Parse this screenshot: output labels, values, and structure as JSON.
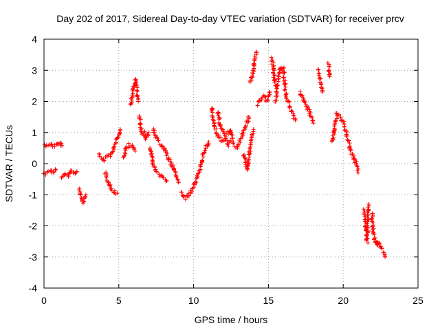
{
  "chart_data": {
    "type": "scatter",
    "title": "Day 202 of 2017, Sidereal Day-to-day VTEC variation (SDTVAR) for receiver prcv",
    "xlabel": "GPS time / hours",
    "ylabel": "SDTVAR / TECUs",
    "xlim": [
      0,
      25
    ],
    "ylim": [
      -4,
      4
    ],
    "grid": true,
    "marker": "plus",
    "color": "#ff0000",
    "xticks": [
      {
        "value": 0,
        "label": "0"
      },
      {
        "value": 5,
        "label": "5"
      },
      {
        "value": 10,
        "label": "10"
      },
      {
        "value": 15,
        "label": "15"
      },
      {
        "value": 20,
        "label": "20"
      },
      {
        "value": 25,
        "label": "25"
      }
    ],
    "yticks": [
      {
        "value": -4,
        "label": "-4"
      },
      {
        "value": -3,
        "label": "-3"
      },
      {
        "value": -2,
        "label": "-2"
      },
      {
        "value": -1,
        "label": "-1"
      },
      {
        "value": 0,
        "label": "0"
      },
      {
        "value": 1,
        "label": "1"
      },
      {
        "value": 2,
        "label": "2"
      },
      {
        "value": 3,
        "label": "3"
      },
      {
        "value": 4,
        "label": "4"
      }
    ],
    "series": [
      {
        "name": "SDTVAR",
        "segments": [
          [
            [
              0.0,
              0.6
            ],
            [
              0.3,
              0.62
            ],
            [
              0.6,
              0.57
            ],
            [
              0.9,
              0.63
            ]
          ],
          [
            [
              0.0,
              -0.33
            ],
            [
              0.2,
              -0.3
            ],
            [
              0.4,
              -0.22
            ],
            [
              0.6,
              -0.28
            ],
            [
              0.8,
              -0.2
            ]
          ],
          [
            [
              0.9,
              0.6
            ],
            [
              1.1,
              0.65
            ],
            [
              1.2,
              0.58
            ]
          ],
          [
            [
              1.2,
              -0.5
            ],
            [
              1.4,
              -0.3
            ],
            [
              1.6,
              -0.4
            ],
            [
              1.8,
              -0.2
            ],
            [
              2.0,
              -0.3
            ],
            [
              2.2,
              -0.25
            ]
          ],
          [
            [
              2.4,
              -0.8
            ],
            [
              2.5,
              -1.1
            ],
            [
              2.6,
              -1.25
            ],
            [
              2.7,
              -1.15
            ],
            [
              2.8,
              -1.0
            ]
          ],
          [
            [
              3.7,
              0.3
            ],
            [
              3.8,
              0.2
            ],
            [
              4.0,
              0.1
            ],
            [
              4.2,
              0.2
            ],
            [
              4.4,
              0.25
            ],
            [
              4.6,
              0.4
            ],
            [
              4.8,
              0.7
            ],
            [
              5.0,
              0.9
            ],
            [
              5.1,
              1.1
            ]
          ],
          [
            [
              4.1,
              -0.3
            ],
            [
              4.3,
              -0.6
            ],
            [
              4.5,
              -0.8
            ],
            [
              4.7,
              -0.9
            ],
            [
              4.9,
              -0.95
            ]
          ],
          [
            [
              5.3,
              0.2
            ],
            [
              5.5,
              0.5
            ],
            [
              5.7,
              0.6
            ],
            [
              5.9,
              0.55
            ],
            [
              6.1,
              0.4
            ]
          ],
          [
            [
              5.8,
              1.9
            ],
            [
              5.9,
              2.2
            ],
            [
              6.0,
              2.5
            ],
            [
              6.1,
              2.7
            ],
            [
              6.2,
              2.4
            ],
            [
              6.3,
              2.0
            ]
          ],
          [
            [
              6.4,
              1.5
            ],
            [
              6.5,
              1.1
            ],
            [
              6.6,
              0.9
            ],
            [
              6.7,
              1.0
            ],
            [
              6.8,
              0.8
            ],
            [
              6.9,
              0.9
            ],
            [
              7.0,
              1.0
            ]
          ],
          [
            [
              7.1,
              0.5
            ],
            [
              7.2,
              0.2
            ],
            [
              7.3,
              0.0
            ],
            [
              7.4,
              -0.2
            ],
            [
              7.6,
              -0.3
            ],
            [
              7.8,
              -0.4
            ],
            [
              8.0,
              -0.5
            ],
            [
              8.2,
              -0.55
            ]
          ],
          [
            [
              7.3,
              1.1
            ],
            [
              7.5,
              0.8
            ],
            [
              7.7,
              0.7
            ],
            [
              7.9,
              0.6
            ],
            [
              8.1,
              0.4
            ],
            [
              8.3,
              0.2
            ],
            [
              8.5,
              0.0
            ],
            [
              8.7,
              -0.2
            ],
            [
              8.9,
              -0.5
            ],
            [
              9.0,
              -0.6
            ]
          ],
          [
            [
              9.2,
              -0.9
            ],
            [
              9.4,
              -1.1
            ],
            [
              9.6,
              -1.05
            ],
            [
              9.8,
              -0.9
            ],
            [
              10.0,
              -0.7
            ],
            [
              10.2,
              -0.5
            ],
            [
              10.4,
              -0.2
            ],
            [
              10.6,
              0.2
            ],
            [
              10.8,
              0.5
            ],
            [
              11.0,
              0.7
            ]
          ],
          [
            [
              11.2,
              1.8
            ],
            [
              11.3,
              1.5
            ],
            [
              11.4,
              1.2
            ],
            [
              11.5,
              1.0
            ],
            [
              11.7,
              0.9
            ],
            [
              11.9,
              0.7
            ],
            [
              12.1,
              0.8
            ],
            [
              12.3,
              0.6
            ],
            [
              12.5,
              0.7
            ],
            [
              12.7,
              0.6
            ],
            [
              12.9,
              0.5
            ],
            [
              13.1,
              0.7
            ],
            [
              13.3,
              1.0
            ],
            [
              13.5,
              1.2
            ],
            [
              13.7,
              1.5
            ]
          ],
          [
            [
              11.6,
              1.7
            ],
            [
              11.8,
              1.2
            ],
            [
              12.0,
              1.0
            ],
            [
              12.2,
              0.9
            ],
            [
              12.4,
              1.1
            ],
            [
              12.6,
              0.8
            ]
          ],
          [
            [
              13.3,
              0.3
            ],
            [
              13.5,
              0.1
            ],
            [
              13.6,
              -0.2
            ],
            [
              13.7,
              0.2
            ],
            [
              13.8,
              0.6
            ],
            [
              13.9,
              0.9
            ],
            [
              14.0,
              1.1
            ]
          ],
          [
            [
              13.8,
              2.6
            ],
            [
              13.9,
              2.8
            ],
            [
              14.0,
              3.0
            ],
            [
              14.1,
              3.3
            ],
            [
              14.2,
              3.6
            ]
          ],
          [
            [
              14.3,
              1.9
            ],
            [
              14.5,
              2.1
            ],
            [
              14.7,
              2.2
            ],
            [
              14.9,
              2.0
            ],
            [
              15.1,
              2.3
            ]
          ],
          [
            [
              15.2,
              3.4
            ],
            [
              15.3,
              3.2
            ],
            [
              15.4,
              2.7
            ],
            [
              15.5,
              2.5
            ]
          ],
          [
            [
              15.5,
              2.0
            ],
            [
              15.6,
              2.5
            ],
            [
              15.7,
              2.9
            ],
            [
              15.8,
              3.1
            ],
            [
              15.9,
              3.0
            ],
            [
              16.0,
              3.05
            ],
            [
              16.1,
              2.6
            ],
            [
              16.2,
              2.1
            ],
            [
              16.4,
              1.9
            ],
            [
              16.6,
              1.6
            ],
            [
              16.8,
              1.4
            ]
          ],
          [
            [
              17.1,
              2.3
            ],
            [
              17.3,
              2.1
            ],
            [
              17.5,
              1.9
            ],
            [
              17.7,
              1.7
            ],
            [
              17.9,
              1.4
            ],
            [
              18.0,
              1.3
            ]
          ],
          [
            [
              18.3,
              3.0
            ],
            [
              18.4,
              2.8
            ],
            [
              18.5,
              2.6
            ],
            [
              18.6,
              2.3
            ]
          ],
          [
            [
              19.0,
              3.2
            ],
            [
              19.1,
              2.8
            ]
          ],
          [
            [
              19.3,
              0.7
            ],
            [
              19.4,
              1.2
            ],
            [
              19.6,
              1.6
            ],
            [
              19.8,
              1.5
            ],
            [
              20.0,
              1.3
            ],
            [
              20.2,
              1.0
            ],
            [
              20.4,
              0.6
            ],
            [
              20.6,
              0.3
            ],
            [
              20.8,
              0.1
            ],
            [
              21.0,
              -0.3
            ]
          ],
          [
            [
              21.4,
              -1.5
            ],
            [
              21.5,
              -2.0
            ],
            [
              21.6,
              -2.5
            ],
            [
              21.7,
              -1.3
            ]
          ],
          [
            [
              21.9,
              -1.6
            ],
            [
              22.0,
              -2.2
            ],
            [
              22.1,
              -2.4
            ],
            [
              22.2,
              -2.6
            ],
            [
              22.3,
              -2.5
            ],
            [
              22.5,
              -2.7
            ],
            [
              22.7,
              -2.8
            ],
            [
              22.8,
              -3.0
            ]
          ]
        ]
      }
    ]
  }
}
